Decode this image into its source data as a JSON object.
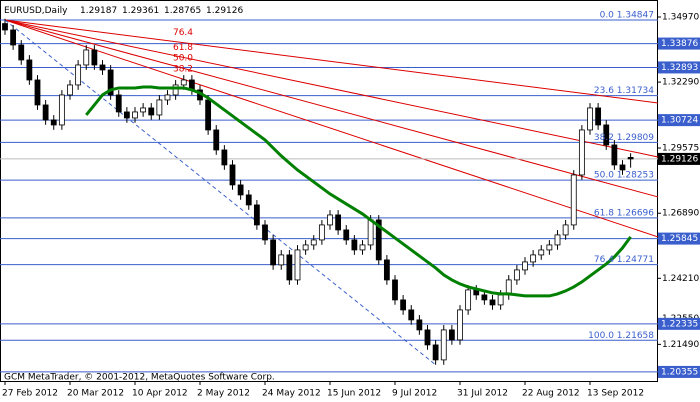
{
  "chart_data": {
    "type": "candlestick",
    "symbol": "EURUSD,Daily",
    "watermark": "GCM MetaTrader, © 2001-2012, MetaQuotes Software Corp.",
    "x": [
      "27 Feb 2012",
      null,
      null,
      null,
      null,
      null,
      null,
      null,
      "20 Mar 2012",
      null,
      null,
      null,
      null,
      null,
      null,
      null,
      "10 Apr 2012",
      null,
      null,
      null,
      null,
      null,
      null,
      null,
      "2 May 2012",
      null,
      null,
      null,
      null,
      null,
      null,
      null,
      "24 May 2012",
      null,
      null,
      null,
      null,
      null,
      null,
      null,
      "15 Jun 2012",
      null,
      null,
      null,
      null,
      null,
      null,
      null,
      "9 Jul 2012",
      null,
      null,
      null,
      null,
      null,
      null,
      null,
      "31 Jul 2012",
      null,
      null,
      null,
      null,
      null,
      null,
      null,
      "22 Aug 2012",
      null,
      null,
      null,
      null,
      null,
      null,
      null,
      "13 Sep 2012",
      null,
      null,
      null,
      null,
      null
    ],
    "candles": [
      [
        1.347,
        1.349,
        1.34236,
        1.34436
      ],
      [
        1.34436,
        1.34636,
        1.33618,
        1.33818
      ],
      [
        1.33818,
        1.34018,
        1.33001,
        1.33201
      ],
      [
        1.33201,
        1.33401,
        1.32177,
        1.32377
      ],
      [
        1.32377,
        1.32577,
        1.31148,
        1.31348
      ],
      [
        1.31348,
        1.31548,
        1.30531,
        1.30731
      ],
      [
        1.30731,
        1.30931,
        1.30325,
        1.30525
      ],
      [
        1.30525,
        1.3196,
        1.30325,
        1.3176
      ],
      [
        1.3176,
        1.32372,
        1.3156,
        1.32172
      ],
      [
        1.32172,
        1.33195,
        1.31972,
        1.32995
      ],
      [
        1.32995,
        1.33812,
        1.32795,
        1.33612
      ],
      [
        1.33612,
        1.33812,
        1.32795,
        1.32995
      ],
      [
        1.32995,
        1.33195,
        1.32589,
        1.32789
      ],
      [
        1.32789,
        1.32989,
        1.3156,
        1.3176
      ],
      [
        1.3176,
        1.3196,
        1.3086,
        1.3106
      ],
      [
        1.3106,
        1.3126,
        1.30613,
        1.30813
      ],
      [
        1.30813,
        1.3126,
        1.30613,
        1.3106
      ],
      [
        1.3106,
        1.31425,
        1.3086,
        1.31225
      ],
      [
        1.31225,
        1.31425,
        1.30736,
        1.30936
      ],
      [
        1.30936,
        1.31754,
        1.30736,
        1.31554
      ],
      [
        1.31554,
        1.3196,
        1.31354,
        1.3176
      ],
      [
        1.3176,
        1.32372,
        1.3156,
        1.32172
      ],
      [
        1.32172,
        1.32577,
        1.31972,
        1.32377
      ],
      [
        1.32377,
        1.32577,
        1.31766,
        1.31966
      ],
      [
        1.31966,
        1.32166,
        1.31354,
        1.31554
      ],
      [
        1.31554,
        1.31754,
        1.30119,
        1.30319
      ],
      [
        1.30319,
        1.30519,
        1.29295,
        1.29495
      ],
      [
        1.29495,
        1.29695,
        1.28678,
        1.28878
      ],
      [
        1.28878,
        1.29078,
        1.27855,
        1.28055
      ],
      [
        1.28055,
        1.28255,
        1.27443,
        1.27643
      ],
      [
        1.27643,
        1.27843,
        1.27031,
        1.27231
      ],
      [
        1.27231,
        1.27431,
        1.26208,
        1.26408
      ],
      [
        1.26408,
        1.26608,
        1.2559,
        1.2579
      ],
      [
        1.2579,
        1.2599,
        1.24561,
        1.24761
      ],
      [
        1.24761,
        1.25373,
        1.24561,
        1.25173
      ],
      [
        1.25173,
        1.25373,
        1.23943,
        1.24143
      ],
      [
        1.24143,
        1.25578,
        1.23943,
        1.25378
      ],
      [
        1.25378,
        1.25784,
        1.25178,
        1.25584
      ],
      [
        1.25584,
        1.2599,
        1.25384,
        1.2579
      ],
      [
        1.2579,
        1.26608,
        1.2559,
        1.26408
      ],
      [
        1.26408,
        1.27019,
        1.26208,
        1.26819
      ],
      [
        1.26819,
        1.27019,
        1.26002,
        1.26202
      ],
      [
        1.26202,
        1.26402,
        1.2559,
        1.2579
      ],
      [
        1.2579,
        1.2599,
        1.25178,
        1.25378
      ],
      [
        1.25378,
        1.25784,
        1.25178,
        1.25584
      ],
      [
        1.25584,
        1.26814,
        1.25384,
        1.26614
      ],
      [
        1.26614,
        1.26814,
        1.24767,
        1.24967
      ],
      [
        1.24967,
        1.25167,
        1.23943,
        1.24143
      ],
      [
        1.24143,
        1.24343,
        1.2312,
        1.2332
      ],
      [
        1.2332,
        1.2352,
        1.22708,
        1.22908
      ],
      [
        1.22908,
        1.23108,
        1.22297,
        1.22497
      ],
      [
        1.22497,
        1.22697,
        1.21885,
        1.22085
      ],
      [
        1.22085,
        1.22285,
        1.21267,
        1.21467
      ],
      [
        1.21467,
        1.21667,
        1.2065,
        1.2085
      ],
      [
        1.2085,
        1.22285,
        1.2065,
        1.22085
      ],
      [
        1.22085,
        1.22285,
        1.21473,
        1.21673
      ],
      [
        1.21673,
        1.23108,
        1.21473,
        1.22908
      ],
      [
        1.22908,
        1.23932,
        1.22708,
        1.23732
      ],
      [
        1.23732,
        1.23932,
        1.23326,
        1.23526
      ],
      [
        1.23526,
        1.23726,
        1.2312,
        1.2332
      ],
      [
        1.2332,
        1.2352,
        1.22914,
        1.23114
      ],
      [
        1.23114,
        1.23726,
        1.22914,
        1.23526
      ],
      [
        1.23526,
        1.24343,
        1.23326,
        1.24143
      ],
      [
        1.24143,
        1.24755,
        1.23943,
        1.24555
      ],
      [
        1.24555,
        1.25084,
        1.24355,
        1.24884
      ],
      [
        1.24884,
        1.25373,
        1.24684,
        1.25173
      ],
      [
        1.25173,
        1.25578,
        1.24973,
        1.25378
      ],
      [
        1.25378,
        1.25784,
        1.25178,
        1.25584
      ],
      [
        1.25584,
        1.26196,
        1.25384,
        1.25996
      ],
      [
        1.25996,
        1.26608,
        1.25796,
        1.26408
      ],
      [
        1.26408,
        1.28666,
        1.26208,
        1.28466
      ],
      [
        1.28466,
        1.30519,
        1.28266,
        1.30319
      ],
      [
        1.30319,
        1.31425,
        1.30119,
        1.31225
      ],
      [
        1.31225,
        1.31425,
        1.30325,
        1.30525
      ],
      [
        1.30525,
        1.30725,
        1.29501,
        1.29701
      ],
      [
        1.29701,
        1.29901,
        1.28678,
        1.28878
      ],
      [
        1.28878,
        1.29078,
        1.28472,
        1.28672
      ],
      [
        1.29187,
        1.29361,
        1.28765,
        1.29126
      ]
    ],
    "ma": {
      "color": "#008000",
      "values": [
        null,
        null,
        null,
        null,
        null,
        null,
        null,
        null,
        null,
        null,
        1.30936,
        1.31348,
        1.3176,
        1.31966,
        1.32048,
        1.32048,
        1.32048,
        1.32089,
        1.32089,
        1.32048,
        1.32048,
        1.32048,
        1.32048,
        1.31966,
        1.31842,
        1.31636,
        1.31389,
        1.31142,
        1.30895,
        1.30648,
        1.30401,
        1.30154,
        1.29907,
        1.29578,
        1.29249,
        1.2896,
        1.28672,
        1.28425,
        1.28178,
        1.27931,
        1.27684,
        1.27478,
        1.27273,
        1.27067,
        1.26861,
        1.26614,
        1.26367,
        1.2612,
        1.25873,
        1.25626,
        1.25378,
        1.25131,
        1.24884,
        1.24637,
        1.24349,
        1.24143,
        1.23979,
        1.23855,
        1.23773,
        1.23691,
        1.23608,
        1.23567,
        1.23567,
        1.23526,
        1.23485,
        1.23485,
        1.23485,
        1.23485,
        1.23567,
        1.23691,
        1.23855,
        1.24061,
        1.24308,
        1.24555,
        1.24802,
        1.2509,
        1.25461,
        1.25914
      ]
    },
    "ylim": [
      1.1994,
      1.3567
    ],
    "yticks": [
      {
        "value": 1.3497,
        "label": "1.34970"
      },
      {
        "value": 1.3229,
        "label": "1.32290"
      },
      1.29575,
      {
        "value": 1.2689,
        "label": "1.26890"
      },
      {
        "value": 1.2421,
        "label": "1.24210"
      },
      {
        "value": 1.2255,
        "label": "1.22550"
      },
      {
        "value": 1.2149,
        "label": "1.21490"
      }
    ],
    "levels": [
      1.33876,
      1.32893,
      1.30724,
      1.25845,
      1.22335,
      1.20355
    ],
    "level_color": "#3a5fcd",
    "fibo": [
      {
        "label": "0.0 1.34847",
        "value": 1.34847
      },
      {
        "label": "23.6 1.31734",
        "value": 1.31734
      },
      {
        "label": "38.2 1.29809",
        "value": 1.29809
      },
      {
        "label": "50.0 1.28253",
        "value": 1.28253
      },
      {
        "label": "61.8 1.26696",
        "value": 1.26696
      },
      {
        "label": "76.4 1.24771",
        "value": 1.24771
      },
      {
        "label": "100.0 1.21658",
        "value": 1.21658
      }
    ],
    "fan": {
      "color": "#dd0000",
      "lines": [
        {
          "label": "76.4",
          "end": 1.3143
        },
        {
          "label": "61.8",
          "end": 1.29207
        },
        {
          "label": "50.0",
          "end": 1.2756
        },
        {
          "label": "38.2",
          "end": 1.25913
        }
      ]
    }
  }
}
